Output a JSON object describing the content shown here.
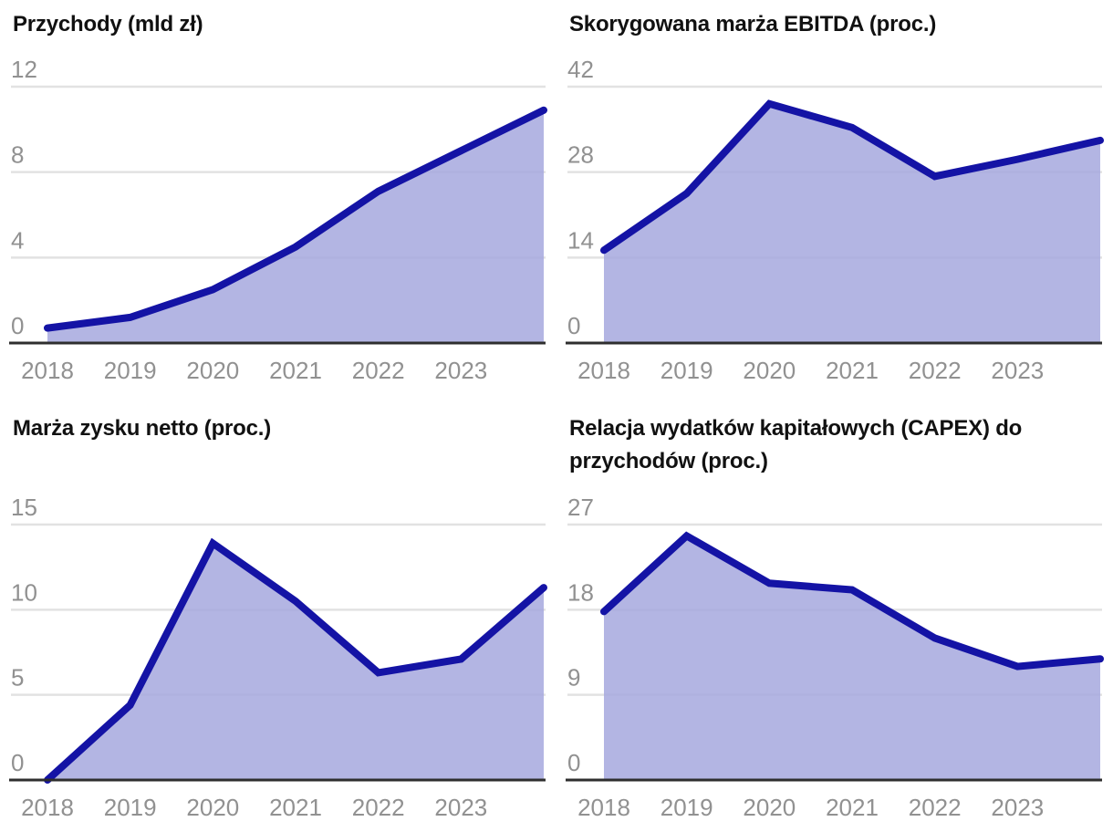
{
  "page": {
    "background": "#ffffff"
  },
  "theme": {
    "line_color": "#1413a5",
    "fill_color": "#a6a8de",
    "fill_opacity": 0.85,
    "grid_color": "#e2e2e2",
    "axis_color": "#2e2e2e",
    "tick_label_color": "#919191",
    "title_color": "#111111"
  },
  "chart_data": [
    {
      "type": "area",
      "title": "Przychody (mld zł)",
      "xlabel": "",
      "ylabel": "mld zł",
      "x": [
        2018,
        2019,
        2020,
        2021,
        2022,
        2023,
        2024
      ],
      "x_tick_labels": [
        "2018",
        "2019",
        "2020",
        "2021",
        "2022",
        "2023"
      ],
      "values": [
        0.7,
        1.2,
        2.5,
        4.5,
        7.1,
        9.0,
        10.9
      ],
      "yticks": [
        0,
        4,
        8,
        12
      ],
      "ylim": [
        0,
        12
      ],
      "grid": true,
      "legend": false
    },
    {
      "type": "area",
      "title": "Skorygowana marża EBITDA (proc.)",
      "xlabel": "",
      "ylabel": "proc.",
      "x": [
        2018,
        2019,
        2020,
        2021,
        2022,
        2023,
        2024
      ],
      "x_tick_labels": [
        "2018",
        "2019",
        "2020",
        "2021",
        "2022",
        "2023"
      ],
      "values": [
        15.2,
        24.5,
        39.2,
        35.3,
        27.3,
        30.1,
        33.2
      ],
      "yticks": [
        0,
        14,
        28,
        42
      ],
      "ylim": [
        0,
        42
      ],
      "grid": true,
      "legend": false
    },
    {
      "type": "area",
      "title": "Marża zysku netto (proc.)",
      "xlabel": "",
      "ylabel": "proc.",
      "x": [
        2018,
        2019,
        2020,
        2021,
        2022,
        2023,
        2024
      ],
      "x_tick_labels": [
        "2018",
        "2019",
        "2020",
        "2021",
        "2022",
        "2023"
      ],
      "values": [
        0.0,
        4.4,
        13.9,
        10.5,
        6.3,
        7.1,
        11.3
      ],
      "yticks": [
        0,
        5,
        10,
        15
      ],
      "ylim": [
        0,
        15
      ],
      "grid": true,
      "legend": false
    },
    {
      "type": "area",
      "title": "Relacja wydatków kapitałowych (CAPEX) do przychodów (proc.)",
      "xlabel": "",
      "ylabel": "proc.",
      "x": [
        2018,
        2019,
        2020,
        2021,
        2022,
        2023,
        2024
      ],
      "x_tick_labels": [
        "2018",
        "2019",
        "2020",
        "2021",
        "2022",
        "2023"
      ],
      "values": [
        17.8,
        25.8,
        20.8,
        20.1,
        15.0,
        12.0,
        12.8
      ],
      "yticks": [
        0,
        9,
        18,
        27
      ],
      "ylim": [
        0,
        27
      ],
      "grid": true,
      "legend": false
    }
  ]
}
